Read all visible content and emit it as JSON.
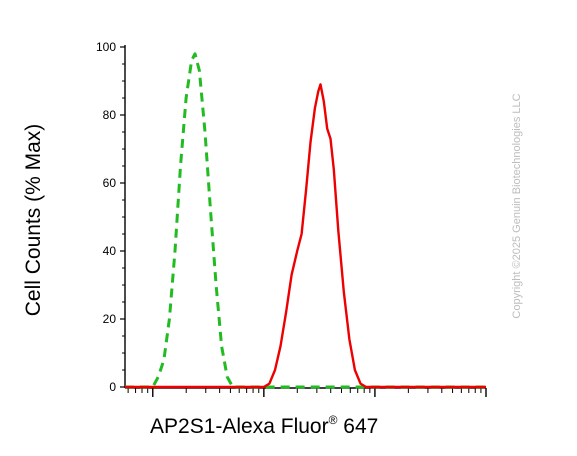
{
  "chart_data": {
    "type": "line",
    "xlabel": "AP2S1-Alexa Fluor",
    "xlabel_mark": "®",
    "xlabel_suffix": " 647",
    "ylabel": "Cell Counts (% Max)",
    "ylim": [
      0,
      100
    ],
    "yticks": [
      0,
      20,
      40,
      60,
      80,
      100
    ],
    "xscale": "log",
    "xlim_decades": [
      -0.25,
      3.0
    ],
    "x_major_decades": [
      0,
      1,
      2,
      3
    ],
    "grid": false,
    "series": [
      {
        "color": "#22bb22",
        "dash": "dashed",
        "points": [
          [
            -0.25,
            0
          ],
          [
            0.0,
            0
          ],
          [
            0.05,
            3
          ],
          [
            0.1,
            8
          ],
          [
            0.15,
            20
          ],
          [
            0.2,
            40
          ],
          [
            0.25,
            65
          ],
          [
            0.3,
            85
          ],
          [
            0.35,
            96
          ],
          [
            0.38,
            98
          ],
          [
            0.42,
            93
          ],
          [
            0.47,
            75
          ],
          [
            0.52,
            52
          ],
          [
            0.57,
            30
          ],
          [
            0.62,
            12
          ],
          [
            0.67,
            3
          ],
          [
            0.72,
            0
          ],
          [
            1.0,
            0
          ],
          [
            1.2,
            0
          ],
          [
            1.45,
            0
          ],
          [
            1.8,
            0
          ],
          [
            3.0,
            0
          ]
        ]
      },
      {
        "color": "#ee0000",
        "dash": "solid",
        "points": [
          [
            -0.25,
            0
          ],
          [
            0.9,
            0
          ],
          [
            1.0,
            0
          ],
          [
            1.05,
            1
          ],
          [
            1.1,
            5
          ],
          [
            1.15,
            12
          ],
          [
            1.2,
            22
          ],
          [
            1.25,
            33
          ],
          [
            1.3,
            40
          ],
          [
            1.34,
            45
          ],
          [
            1.38,
            58
          ],
          [
            1.42,
            72
          ],
          [
            1.46,
            82
          ],
          [
            1.49,
            87
          ],
          [
            1.51,
            89
          ],
          [
            1.54,
            84
          ],
          [
            1.57,
            76
          ],
          [
            1.6,
            73
          ],
          [
            1.63,
            64
          ],
          [
            1.67,
            46
          ],
          [
            1.72,
            28
          ],
          [
            1.77,
            14
          ],
          [
            1.82,
            5
          ],
          [
            1.87,
            1
          ],
          [
            1.92,
            0
          ],
          [
            3.0,
            0
          ]
        ]
      }
    ]
  },
  "copyright": "Copyright ©2025 Genuin Biotechnologies LLC"
}
